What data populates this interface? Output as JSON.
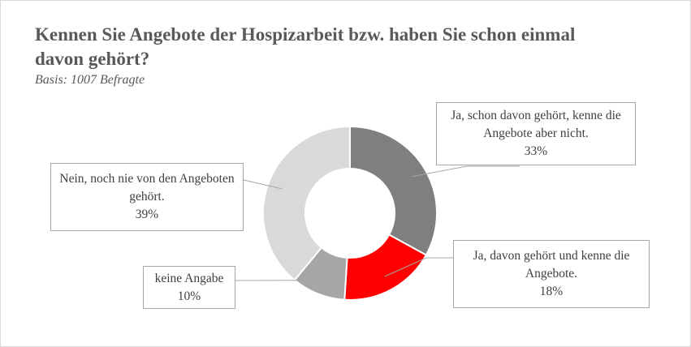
{
  "chart_data": {
    "type": "pie",
    "variant": "donut",
    "title": "Kennen Sie Angebote der Hospizarbeit bzw. haben Sie schon einmal davon gehört?",
    "subtitle": "Basis: 1007 Befragte",
    "slices": [
      {
        "label": "Ja, schon davon gehört, kenne die Angebote aber nicht.",
        "value": 33,
        "value_label": "33%",
        "color": "#7f7f7f"
      },
      {
        "label": "Ja, davon gehört und kenne die Angebote.",
        "value": 18,
        "value_label": "18%",
        "color": "#ff0000"
      },
      {
        "label": "keine Angabe",
        "value": 10,
        "value_label": "10%",
        "color": "#a6a6a6"
      },
      {
        "label": "Nein, noch nie von den Angeboten gehört.",
        "value": 39,
        "value_label": "39%",
        "color": "#d9d9d9"
      }
    ],
    "legend": "none"
  }
}
